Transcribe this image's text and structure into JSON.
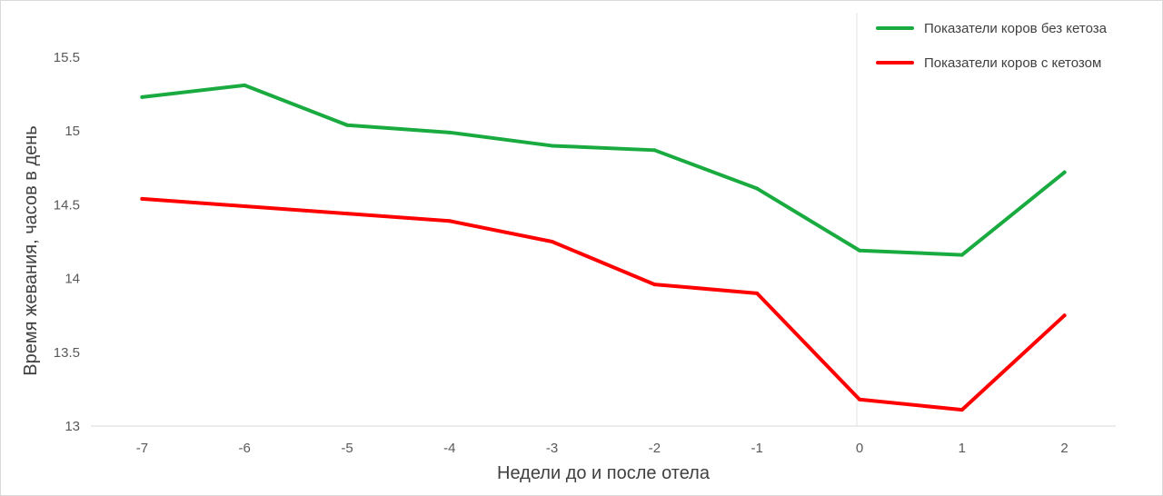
{
  "chart_data": {
    "type": "line",
    "xlabel": "Недели до и после отела",
    "ylabel": "Время жевания, часов в день",
    "categories": [
      "-7",
      "-6",
      "-5",
      "-4",
      "-3",
      "-2",
      "-1",
      "0",
      "1",
      "2"
    ],
    "y_ticks": [
      "13",
      "13.5",
      "14",
      "14.5",
      "15",
      "15.5"
    ],
    "ylim": [
      13,
      15.5
    ],
    "grid": false,
    "legend_position": "top-right",
    "reference_line_at_category": "0",
    "series": [
      {
        "name": "Показатели коров без кетоза",
        "color": "#1aab40",
        "values": [
          15.23,
          15.31,
          15.04,
          14.99,
          14.9,
          14.87,
          14.61,
          14.19,
          14.16,
          14.72
        ]
      },
      {
        "name": "Показатели коров с кетозом",
        "color": "#ff0000",
        "values": [
          14.54,
          14.49,
          14.44,
          14.39,
          14.25,
          13.96,
          13.9,
          13.18,
          13.11,
          13.75
        ]
      }
    ]
  }
}
